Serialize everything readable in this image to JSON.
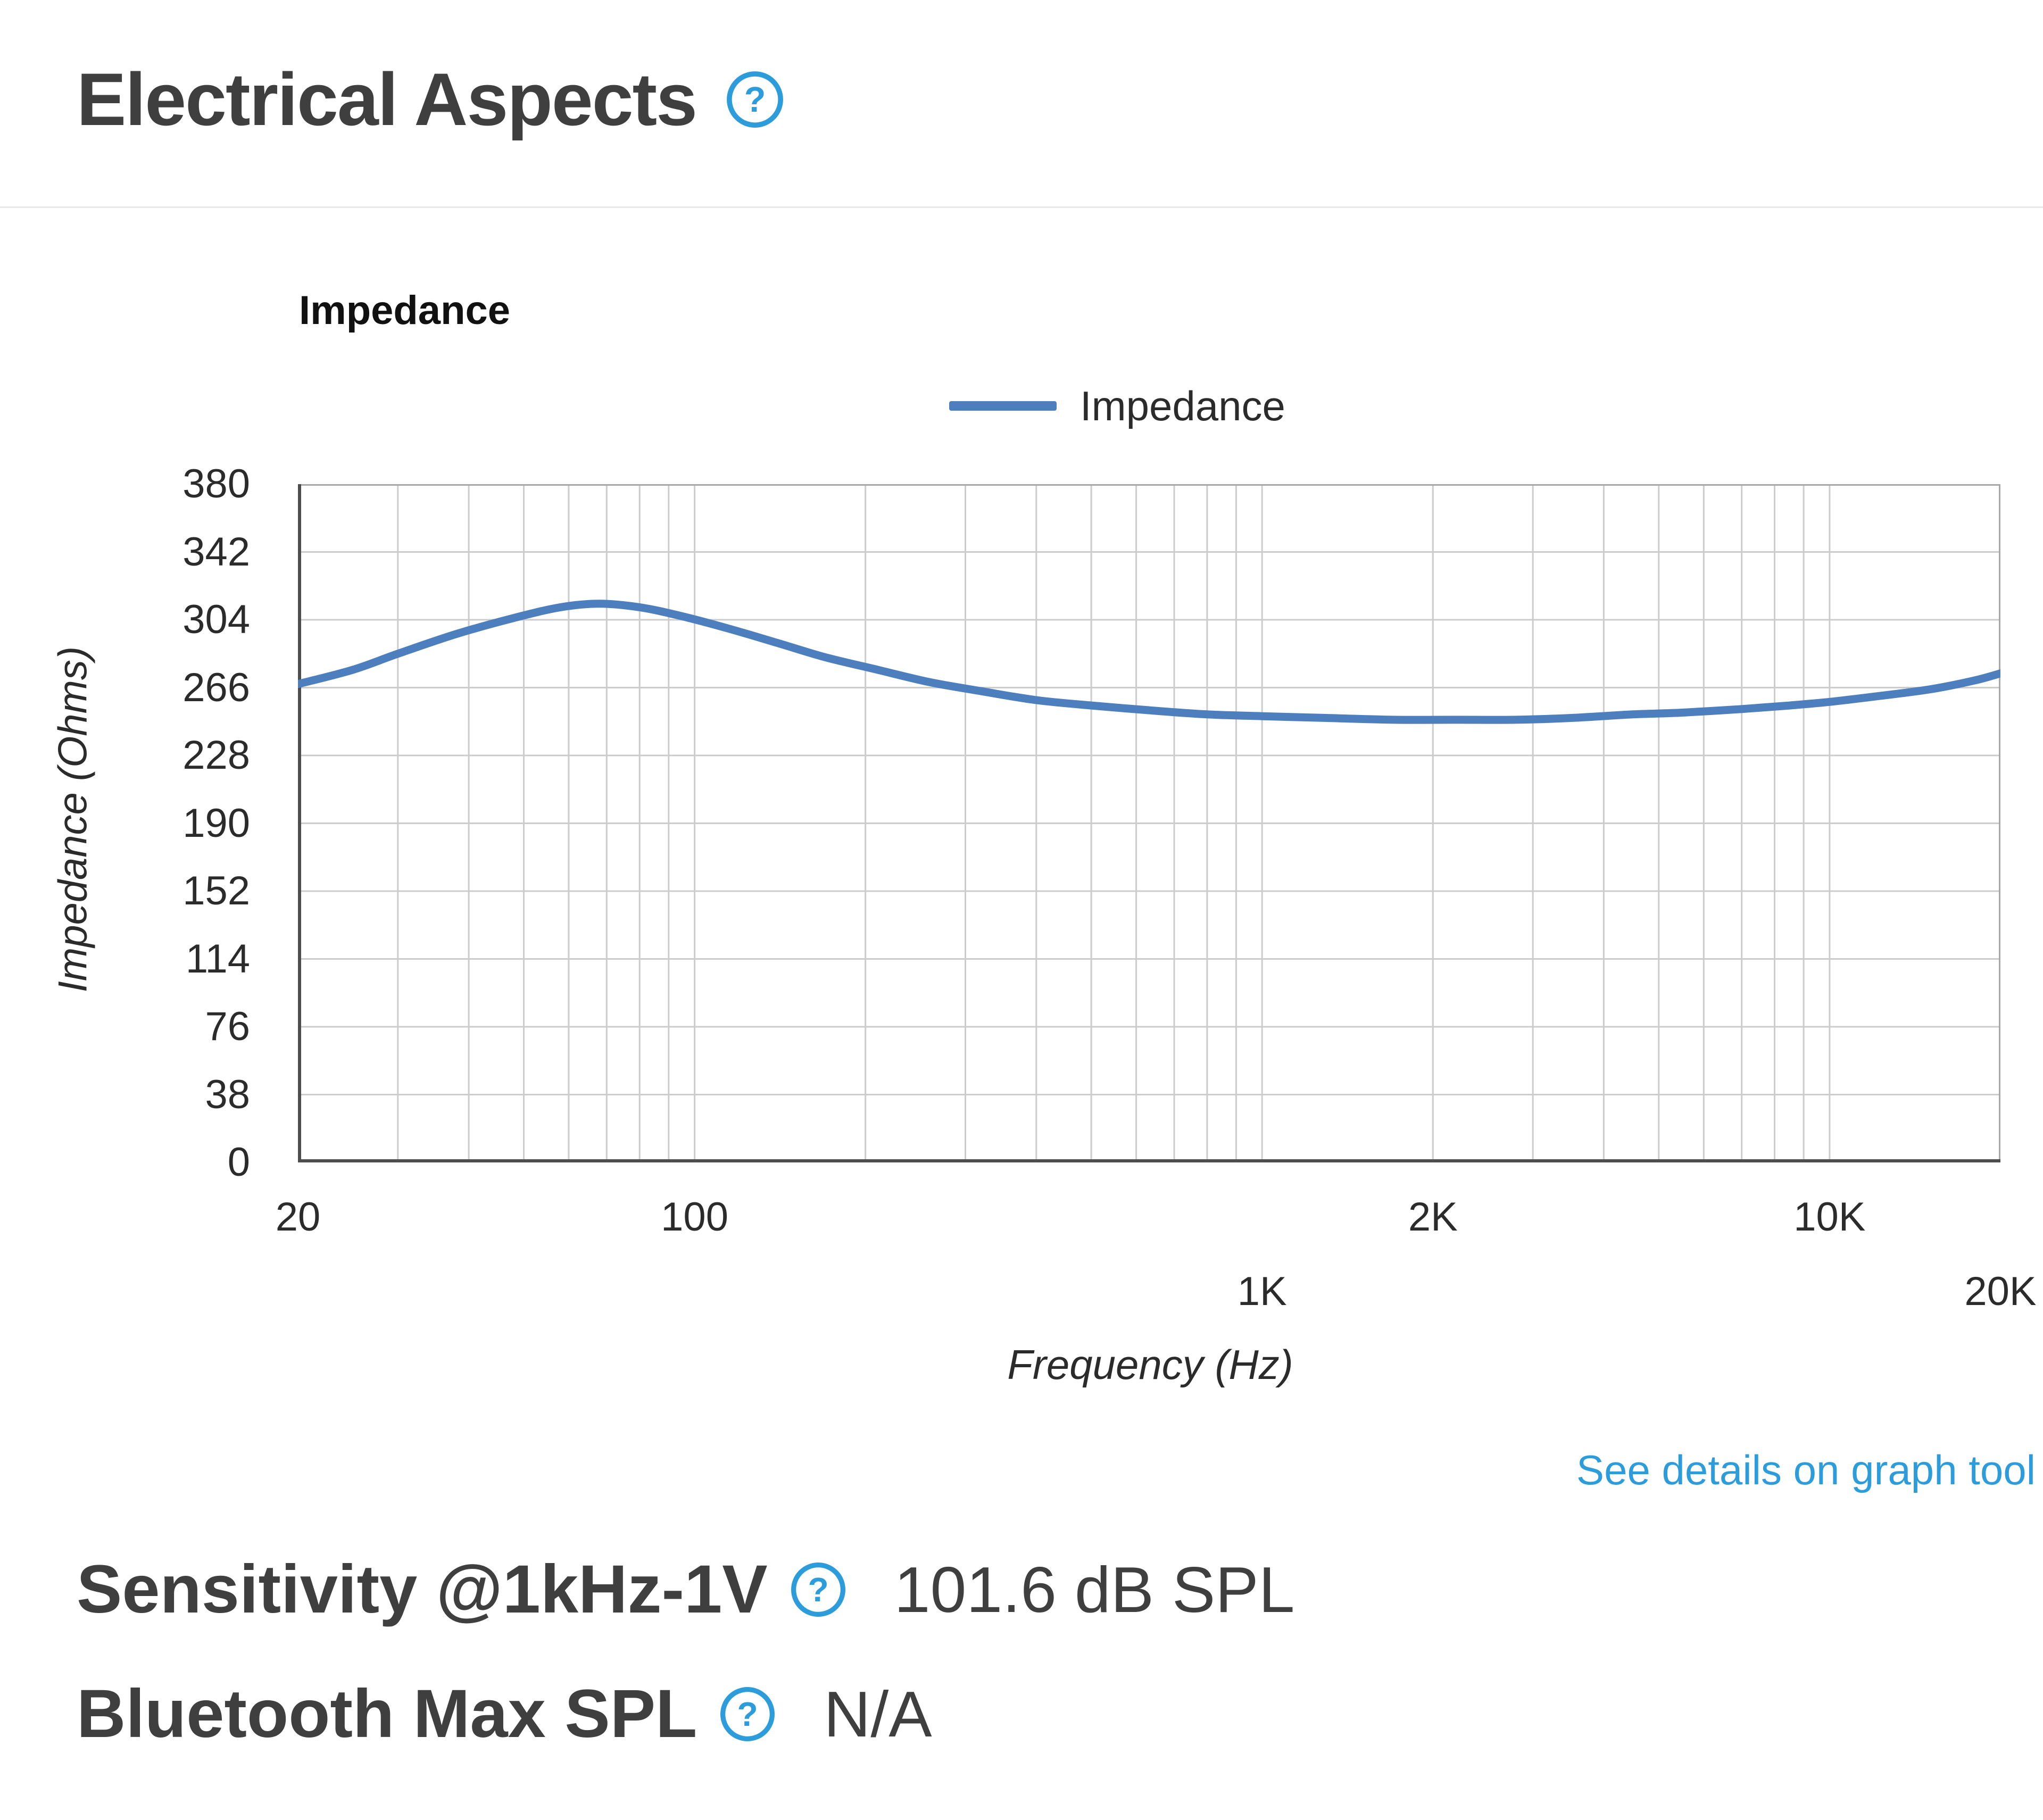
{
  "colors": {
    "accent": "#2d9cdb",
    "heading": "#3f3f3f",
    "line": "#4d7ebd"
  },
  "header": {
    "title": "Electrical Aspects"
  },
  "links": {
    "graph_tool": "See details on graph tool"
  },
  "specs": [
    {
      "label": "Sensitivity @1kHz-1V",
      "value": "101.6 dB SPL"
    },
    {
      "label": "Bluetooth Max SPL",
      "value": "N/A"
    }
  ],
  "chart_data": {
    "type": "line",
    "title": "Impedance",
    "xlabel": "Frequency (Hz)",
    "ylabel": "Impedance (Ohms)",
    "x_scale": "log",
    "xlim": [
      20,
      20000
    ],
    "ylim": [
      0,
      380
    ],
    "y_ticks": [
      0,
      38,
      76,
      114,
      152,
      190,
      228,
      266,
      304,
      342,
      380
    ],
    "x_ticks": [
      {
        "value": 20,
        "label": "20",
        "row": 0
      },
      {
        "value": 100,
        "label": "100",
        "row": 0
      },
      {
        "value": 1000,
        "label": "1K",
        "row": 1
      },
      {
        "value": 2000,
        "label": "2K",
        "row": 0
      },
      {
        "value": 10000,
        "label": "10K",
        "row": 0
      },
      {
        "value": 20000,
        "label": "20K",
        "row": 1
      }
    ],
    "x_grid": [
      20,
      30,
      40,
      50,
      60,
      70,
      80,
      90,
      100,
      200,
      300,
      400,
      500,
      600,
      700,
      800,
      900,
      1000,
      2000,
      3000,
      4000,
      5000,
      6000,
      7000,
      8000,
      9000,
      10000,
      20000
    ],
    "grid": true,
    "legend_position": "top-center",
    "legend": [
      {
        "label": "Impedance",
        "color": "#4d7ebd"
      }
    ],
    "series": [
      {
        "name": "Impedance",
        "color": "#4d7ebd",
        "x": [
          20,
          25,
          30,
          38,
          48,
          58,
          68,
          80,
          95,
          115,
          140,
          170,
          210,
          260,
          320,
          400,
          500,
          650,
          800,
          1000,
          1300,
          1700,
          2200,
          2800,
          3500,
          4500,
          5500,
          7000,
          8500,
          10000,
          12000,
          15000,
          18000,
          20000
        ],
        "y": [
          268,
          276,
          285,
          296,
          305,
          311,
          313,
          311,
          306,
          299,
          291,
          283,
          276,
          269,
          264,
          259,
          256,
          253,
          251,
          250,
          249,
          248,
          248,
          248,
          249,
          251,
          252,
          254,
          256,
          258,
          261,
          265,
          270,
          274
        ]
      }
    ]
  }
}
